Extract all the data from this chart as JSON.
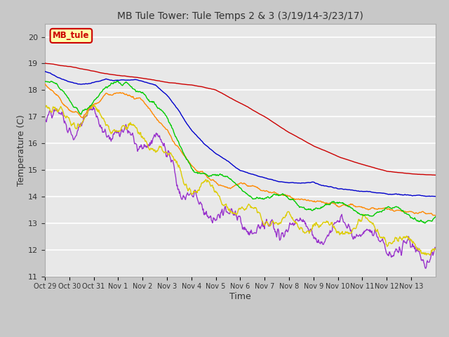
{
  "title": "MB Tule Tower: Tule Temps 2 & 3 (3/19/14-3/23/17)",
  "xlabel": "Time",
  "ylabel": "Temperature (C)",
  "ylim": [
    11.0,
    20.5
  ],
  "yticks": [
    11.0,
    12.0,
    13.0,
    14.0,
    15.0,
    16.0,
    17.0,
    18.0,
    19.0,
    20.0
  ],
  "x_labels": [
    "Oct 29",
    "Oct 30",
    "Oct 31",
    "Nov 1",
    "Nov 2",
    "Nov 3",
    "Nov 4",
    "Nov 5",
    "Nov 6",
    "Nov 7",
    "Nov 8",
    "Nov 9",
    "Nov 10",
    "Nov 11",
    "Nov 12",
    "Nov 13"
  ],
  "series": {
    "Tul2_Ts-8": {
      "color": "#cc0000",
      "lw": 1.0
    },
    "Tul2_Ts0": {
      "color": "#0000cc",
      "lw": 1.0
    },
    "Tul2_Tw+10": {
      "color": "#00cc00",
      "lw": 1.0
    },
    "Tul3_Ts-8": {
      "color": "#ff8800",
      "lw": 1.0
    },
    "Tul3_Ts0": {
      "color": "#ddcc00",
      "lw": 1.0
    },
    "Tul3_Tw+10": {
      "color": "#9933cc",
      "lw": 1.0
    }
  },
  "watermark_text": "MB_tule",
  "watermark_bg": "#ffffaa",
  "watermark_border": "#cc0000",
  "bg_color": "#c8c8c8",
  "plot_bg": "#e8e8e8"
}
